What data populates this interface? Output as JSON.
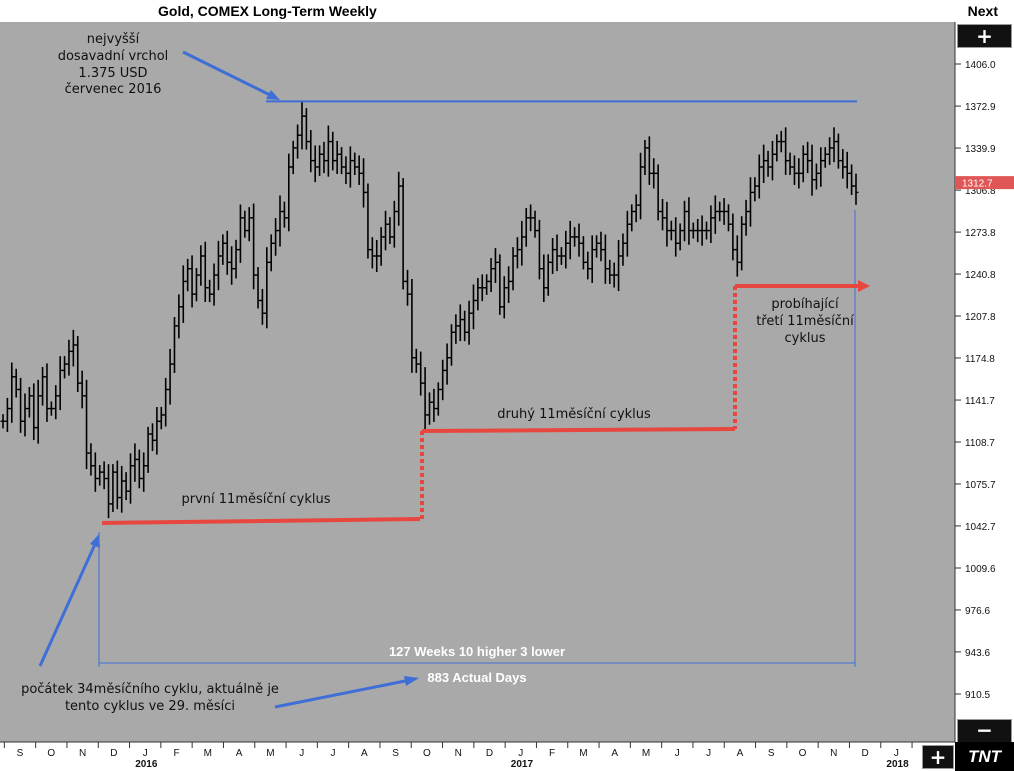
{
  "header": {
    "title": "Gold, COMEX Long-Term Weekly",
    "next_label": "Next"
  },
  "controls": {
    "zoom_in": "+",
    "zoom_out": "−",
    "add": "+"
  },
  "logo": "TNT",
  "current_price": "1312.7",
  "colors": {
    "bars": "#000000",
    "resistance": "#3f6fd6",
    "cycle": "#e8473f",
    "arrow": "#3f6fd6",
    "price_tag": "#e05555",
    "background": "#a9a9a9"
  },
  "chart_data": {
    "type": "bar",
    "title": "Gold, COMEX Long-Term Weekly",
    "y_ticks": [
      1406.0,
      1372.9,
      1339.9,
      1306.8,
      1273.8,
      1240.8,
      1207.8,
      1174.8,
      1141.7,
      1108.7,
      1075.7,
      1042.7,
      1009.6,
      976.6,
      943.6,
      910.5
    ],
    "ylim": [
      888,
      1426
    ],
    "month_labels": [
      "S",
      "O",
      "N",
      "D",
      "J",
      "F",
      "M",
      "A",
      "M",
      "J",
      "J",
      "A",
      "S",
      "O",
      "N",
      "D",
      "J",
      "F",
      "M",
      "A",
      "M",
      "J",
      "J",
      "A",
      "S",
      "O",
      "N",
      "D",
      "J",
      "F",
      "M",
      "A",
      "M",
      "J",
      "J"
    ],
    "year_labels": [
      {
        "label": "2016",
        "month_index": 4
      },
      {
        "label": "2017",
        "month_index": 16
      },
      {
        "label": "2018",
        "month_index": 28
      }
    ],
    "series": [
      {
        "values": [
          1125,
          1135,
          1160,
          1150,
          1125,
          1135,
          1145,
          1120,
          1145,
          1160,
          1135,
          1135,
          1145,
          1165,
          1170,
          1180,
          1185,
          1155,
          1145,
          1100,
          1090,
          1080,
          1085,
          1080,
          1060,
          1085,
          1065,
          1078,
          1070,
          1090,
          1095,
          1080,
          1090,
          1115,
          1110,
          1125,
          1130,
          1150,
          1170,
          1200,
          1215,
          1235,
          1245,
          1225,
          1240,
          1255,
          1230,
          1225,
          1240,
          1255,
          1265,
          1250,
          1245,
          1260,
          1285,
          1275,
          1285,
          1240,
          1220,
          1210,
          1250,
          1265,
          1275,
          1290,
          1285,
          1325,
          1340,
          1350,
          1365,
          1345,
          1330,
          1325,
          1335,
          1330,
          1345,
          1330,
          1335,
          1325,
          1320,
          1330,
          1325,
          1320,
          1305,
          1260,
          1255,
          1255,
          1270,
          1280,
          1270,
          1290,
          1310,
          1235,
          1225,
          1175,
          1170,
          1155,
          1130,
          1140,
          1135,
          1150,
          1165,
          1175,
          1195,
          1200,
          1205,
          1195,
          1210,
          1220,
          1230,
          1230,
          1235,
          1245,
          1250,
          1215,
          1230,
          1235,
          1255,
          1260,
          1270,
          1285,
          1285,
          1275,
          1245,
          1230,
          1250,
          1260,
          1255,
          1255,
          1265,
          1270,
          1270,
          1265,
          1250,
          1245,
          1260,
          1265,
          1260,
          1245,
          1240,
          1240,
          1255,
          1265,
          1280,
          1290,
          1295,
          1325,
          1340,
          1320,
          1320,
          1290,
          1285,
          1275,
          1275,
          1265,
          1275,
          1290,
          1275,
          1275,
          1275,
          1275,
          1275,
          1285,
          1290,
          1290,
          1290,
          1280,
          1260,
          1250,
          1280,
          1290,
          1305,
          1310,
          1325,
          1330,
          1325,
          1335,
          1345,
          1345,
          1330,
          1325,
          1320,
          1320,
          1335,
          1330,
          1315,
          1320,
          1330,
          1335,
          1340,
          1345,
          1330,
          1325,
          1320,
          1310,
          1305
        ]
      }
    ],
    "resistance_level": {
      "label": "nejvyšší dosavadní vrchol 1.375 USD červenec 2016",
      "value": 1375
    },
    "cycles": [
      {
        "label": "první 11měsíční cyklus",
        "start_level": 1046,
        "end_level": 1050
      },
      {
        "label": "druhý 11měsíční cyklus",
        "start_level": 1122,
        "end_level": 1124
      },
      {
        "label": "probíhající třetí 11měsíční cyklus",
        "level": 1236
      }
    ],
    "measurement": {
      "weeks_label": "127 Weeks 10 higher 3 lower",
      "days_label": "883 Actual Days"
    }
  },
  "annotations": {
    "peak": [
      "nejvyšší",
      "dosavadní vrchol",
      "1.375 USD",
      "červenec 2016"
    ],
    "cycle1": "první 11měsíční cyklus",
    "cycle2": "druhý 11měsíční cyklus",
    "cycle3": [
      "probíhající",
      "třetí 11měsíční",
      "cyklus"
    ],
    "cycle_start": [
      "počátek 34měsíčního cyklu, aktuálně je",
      "tento cyklus ve 29. měsíci"
    ]
  }
}
